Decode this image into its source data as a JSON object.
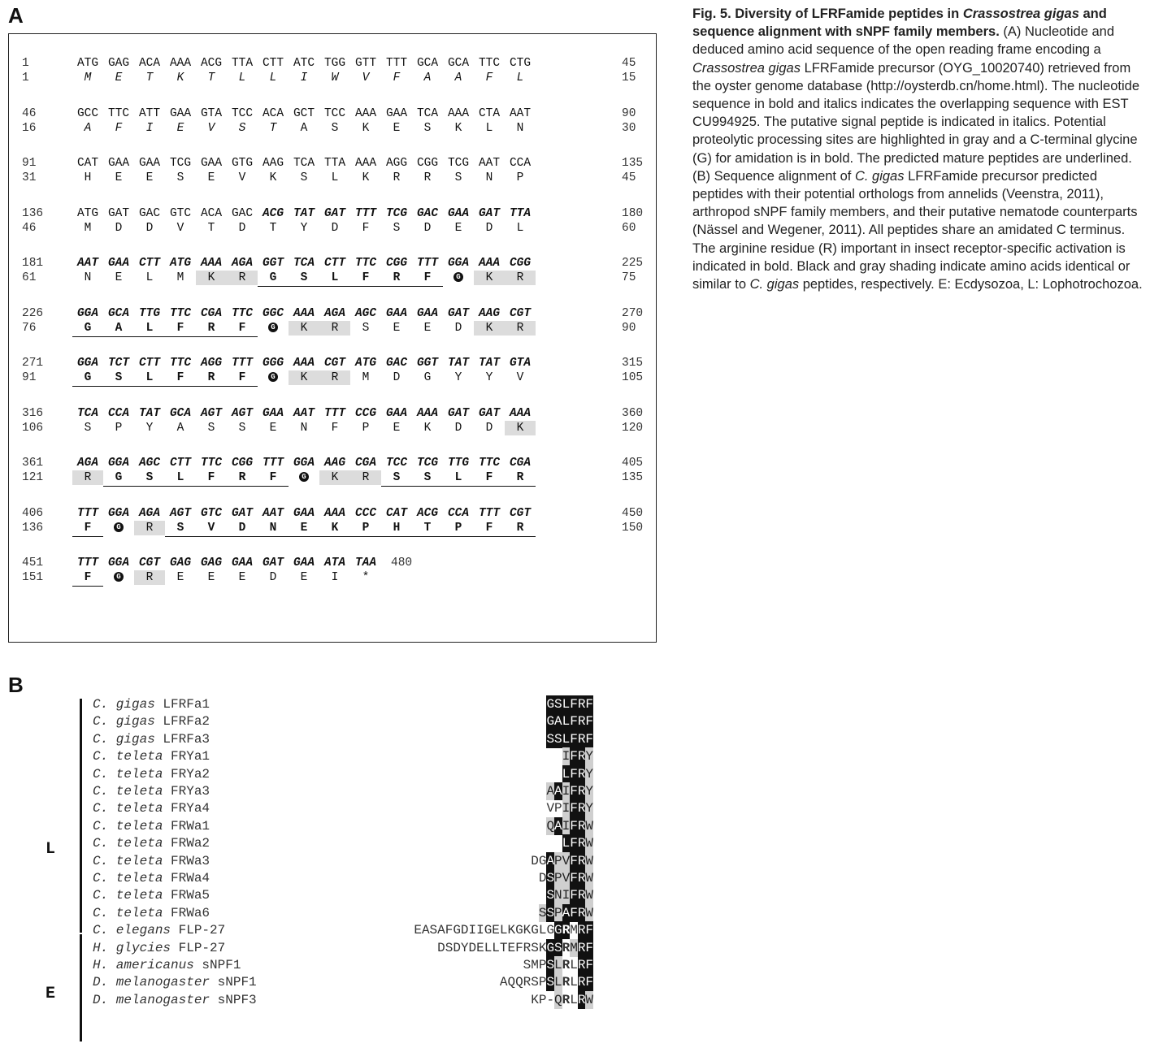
{
  "panel_a_label": "A",
  "panel_b_label": "B",
  "caption": {
    "bold_1": "Fig. 5. Diversity of LFRFamide peptides in ",
    "bold_it_1": "Crassostrea gigas",
    "bold_2": " and sequence alignment with sNPF family members.",
    "text_1": " (A) Nucleotide and deduced amino acid sequence of the open reading frame encoding a ",
    "it_1": "Crassostrea gigas",
    "text_2": " LFRFamide precursor (OYG_10020740) retrieved from the oyster genome database (http://oysterdb.cn/home.html). The nucleotide sequence in bold and italics indicates the overlapping sequence with EST CU994925. The putative signal peptide is indicated in italics. Potential proteolytic processing sites are highlighted in gray and a C-terminal glycine (G) for amidation is in bold. The predicted mature peptides are underlined. (B) Sequence alignment of ",
    "it_2": "C. gigas",
    "text_3": " LFRFamide precursor predicted peptides with their potential orthologs from annelids (Veenstra, 2011), arthropod sNPF family members, and their putative nematode counterparts (Nässel and Wegener, 2011). All peptides share an amidated C terminus. The arginine residue (R) important in insect receptor-specific activation is indicated in bold. Black and gray shading indicate amino acids identical or similar to ",
    "it_3": "C. gigas",
    "text_4": " peptides, respectively. E: Ecdysozoa, L: Lophotrochozoa."
  },
  "sequence_blocks": [
    {
      "nt_start": "1",
      "nt_end": "45",
      "aa_start": "1",
      "aa_end": "15",
      "codons": [
        "ATG",
        "GAG",
        "ACA",
        "AAA",
        "ACG",
        "TTA",
        "CTT",
        "ATC",
        "TGG",
        "GTT",
        "TTT",
        "GCA",
        "GCA",
        "TTC",
        "CTG"
      ],
      "aas": [
        "M",
        "E",
        "T",
        "K",
        "T",
        "L",
        "L",
        "I",
        "W",
        "V",
        "F",
        "A",
        "A",
        "F",
        "L"
      ]
    },
    {
      "nt_start": "46",
      "nt_end": "90",
      "aa_start": "16",
      "aa_end": "30",
      "codons": [
        "GCC",
        "TTC",
        "ATT",
        "GAA",
        "GTA",
        "TCC",
        "ACA",
        "GCT",
        "TCC",
        "AAA",
        "GAA",
        "TCA",
        "AAA",
        "CTA",
        "AAT"
      ],
      "aas": [
        "A",
        "F",
        "I",
        "E",
        "V",
        "S",
        "T",
        "A",
        "S",
        "K",
        "E",
        "S",
        "K",
        "L",
        "N"
      ]
    },
    {
      "nt_start": "91",
      "nt_end": "135",
      "aa_start": "31",
      "aa_end": "45",
      "codons": [
        "CAT",
        "GAA",
        "GAA",
        "TCG",
        "GAA",
        "GTG",
        "AAG",
        "TCA",
        "TTA",
        "AAA",
        "AGG",
        "CGG",
        "TCG",
        "AAT",
        "CCA"
      ],
      "aas": [
        "H",
        "E",
        "E",
        "S",
        "E",
        "V",
        "K",
        "S",
        "L",
        "K",
        "R",
        "R",
        "S",
        "N",
        "P"
      ]
    },
    {
      "nt_start": "136",
      "nt_end": "180",
      "aa_start": "46",
      "aa_end": "60",
      "codons": [
        "ATG",
        "GAT",
        "GAC",
        "GTC",
        "ACA",
        "GAC",
        "ACG",
        "TAT",
        "GAT",
        "TTT",
        "TCG",
        "GAC",
        "GAA",
        "GAT",
        "TTA"
      ],
      "aas": [
        "M",
        "D",
        "D",
        "V",
        "T",
        "D",
        "T",
        "Y",
        "D",
        "F",
        "S",
        "D",
        "E",
        "D",
        "L"
      ]
    },
    {
      "nt_start": "181",
      "nt_end": "225",
      "aa_start": "61",
      "aa_end": "75",
      "codons": [
        "AAT",
        "GAA",
        "CTT",
        "ATG",
        "AAA",
        "AGA",
        "GGT",
        "TCA",
        "CTT",
        "TTC",
        "CGG",
        "TTT",
        "GGA",
        "AAA",
        "CGG"
      ],
      "aas": [
        "N",
        "E",
        "L",
        "M",
        "K",
        "R",
        "G",
        "S",
        "L",
        "F",
        "R",
        "F",
        "G",
        "K",
        "R"
      ]
    },
    {
      "nt_start": "226",
      "nt_end": "270",
      "aa_start": "76",
      "aa_end": "90",
      "codons": [
        "GGA",
        "GCA",
        "TTG",
        "TTC",
        "CGA",
        "TTC",
        "GGC",
        "AAA",
        "AGA",
        "AGC",
        "GAA",
        "GAA",
        "GAT",
        "AAG",
        "CGT"
      ],
      "aas": [
        "G",
        "A",
        "L",
        "F",
        "R",
        "F",
        "G",
        "K",
        "R",
        "S",
        "E",
        "E",
        "D",
        "K",
        "R"
      ]
    },
    {
      "nt_start": "271",
      "nt_end": "315",
      "aa_start": "91",
      "aa_end": "105",
      "codons": [
        "GGA",
        "TCT",
        "CTT",
        "TTC",
        "AGG",
        "TTT",
        "GGG",
        "AAA",
        "CGT",
        "ATG",
        "GAC",
        "GGT",
        "TAT",
        "TAT",
        "GTA"
      ],
      "aas": [
        "G",
        "S",
        "L",
        "F",
        "R",
        "F",
        "G",
        "K",
        "R",
        "M",
        "D",
        "G",
        "Y",
        "Y",
        "V"
      ]
    },
    {
      "nt_start": "316",
      "nt_end": "360",
      "aa_start": "106",
      "aa_end": "120",
      "codons": [
        "TCA",
        "CCA",
        "TAT",
        "GCA",
        "AGT",
        "AGT",
        "GAA",
        "AAT",
        "TTT",
        "CCG",
        "GAA",
        "AAA",
        "GAT",
        "GAT",
        "AAA"
      ],
      "aas": [
        "S",
        "P",
        "Y",
        "A",
        "S",
        "S",
        "E",
        "N",
        "F",
        "P",
        "E",
        "K",
        "D",
        "D",
        "K"
      ]
    },
    {
      "nt_start": "361",
      "nt_end": "405",
      "aa_start": "121",
      "aa_end": "135",
      "codons": [
        "AGA",
        "GGA",
        "AGC",
        "CTT",
        "TTC",
        "CGG",
        "TTT",
        "GGA",
        "AAG",
        "CGA",
        "TCC",
        "TCG",
        "TTG",
        "TTC",
        "CGA"
      ],
      "aas": [
        "R",
        "G",
        "S",
        "L",
        "F",
        "R",
        "F",
        "G",
        "K",
        "R",
        "S",
        "S",
        "L",
        "F",
        "R"
      ]
    },
    {
      "nt_start": "406",
      "nt_end": "450",
      "aa_start": "136",
      "aa_end": "150",
      "codons": [
        "TTT",
        "GGA",
        "AGA",
        "AGT",
        "GTC",
        "GAT",
        "AAT",
        "GAA",
        "AAA",
        "CCC",
        "CAT",
        "ACG",
        "CCA",
        "TTT",
        "CGT"
      ],
      "aas": [
        "F",
        "G",
        "R",
        "S",
        "V",
        "D",
        "N",
        "E",
        "K",
        "P",
        "H",
        "T",
        "P",
        "F",
        "R"
      ]
    },
    {
      "nt_start": "451",
      "nt_end": "480",
      "aa_start": "151",
      "aa_end": "",
      "codons": [
        "TTT",
        "GGA",
        "CGT",
        "GAG",
        "GAG",
        "GAA",
        "GAT",
        "GAA",
        "ATA",
        "TAA"
      ],
      "aas": [
        "F",
        "G",
        "R",
        "E",
        "E",
        "E",
        "D",
        "E",
        "I",
        "*"
      ]
    }
  ],
  "alignment": {
    "group_L_label": "L",
    "group_E_label": "E",
    "rows": [
      {
        "genus": "C. gigas",
        "name": "LFRFa1",
        "seq": "GSLFRF",
        "shade": "KKKKKK",
        "bold": "000000"
      },
      {
        "genus": "C. gigas",
        "name": "LFRFa2",
        "seq": "GALFRF",
        "shade": "KKKKKK",
        "bold": "000000"
      },
      {
        "genus": "C. gigas",
        "name": "LFRFa3",
        "seq": "SSLFRF",
        "shade": "KKKKKK",
        "bold": "000000"
      },
      {
        "genus": "C. teleta",
        "name": "FRYa1",
        "seq": "IFRY",
        "shade": "GKKG",
        "bold": "0000"
      },
      {
        "genus": "C. teleta",
        "name": "FRYa2",
        "seq": "LFRY",
        "shade": "KKKG",
        "bold": "0000"
      },
      {
        "genus": "C. teleta",
        "name": "FRYa3",
        "seq": "AAIFRY",
        "shade": "GKGKKG",
        "bold": "000000"
      },
      {
        "genus": "C. teleta",
        "name": "FRYa4",
        "seq": "VPIFRY",
        "shade": "..GKKG",
        "bold": "000000"
      },
      {
        "genus": "C. teleta",
        "name": "FRWa1",
        "seq": "QAIFRW",
        "shade": "GKGKKG",
        "bold": "000000"
      },
      {
        "genus": "C. teleta",
        "name": "FRWa2",
        "seq": "LFRW",
        "shade": "KKKG",
        "bold": "0000"
      },
      {
        "genus": "C. teleta",
        "name": "FRWa3",
        "seq": "DGAPVFRW",
        "shade": "..KGGKKG",
        "bold": "00000000"
      },
      {
        "genus": "C. teleta",
        "name": "FRWa4",
        "seq": "DSPVFRW",
        "shade": ".KGGKKG",
        "bold": "0000000"
      },
      {
        "genus": "C. teleta",
        "name": "FRWa5",
        "seq": "SNIFRW",
        "shade": "KGGKKG",
        "bold": "000000"
      },
      {
        "genus": "C. teleta",
        "name": "FRWa6",
        "seq": "SSPAFRW",
        "shade": "GKGKKKG",
        "bold": "0000000"
      },
      {
        "genus": "C. elegans",
        "name": "FLP-27",
        "seq": "EASAFGDIIGELKGKGLGGRMRF",
        "shade": "..................KK.KK",
        "bold": "00000000000000000001000"
      },
      {
        "genus": "H. glycies",
        "name": "FLP-27",
        "seq": "DSDYDELLTEFRSKGSRMRF",
        "shade": "..............KK.GKK",
        "bold": "00000000000000001000"
      },
      {
        "genus": "H. americanus",
        "name": "sNPF1",
        "seq": "SMPSLRLRF",
        "shade": "...KG..KK",
        "bold": "000001000"
      },
      {
        "genus": "D. melanogaster",
        "name": "sNPF1",
        "seq": "AQQRSPSLRLRF",
        "shade": "......KG..KK",
        "bold": "000000001000"
      },
      {
        "genus": "D. melanogaster",
        "name": "sNPF3",
        "seq": "KP-QRLRW",
        "shade": "...G..KG",
        "bold": "00001000"
      }
    ]
  }
}
